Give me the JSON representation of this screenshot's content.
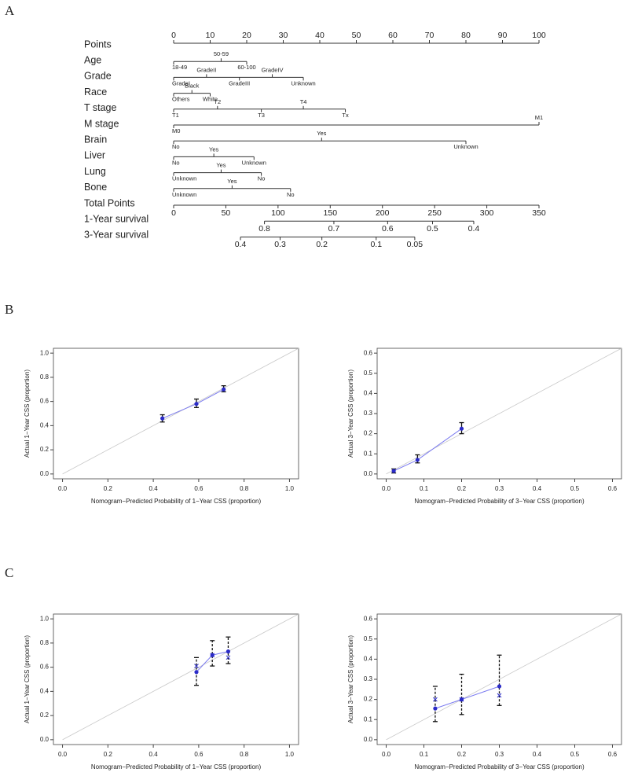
{
  "panel_labels": [
    "A",
    "B",
    "C"
  ],
  "chart_data": [
    {
      "type": "nomogram",
      "points_axis": {
        "name": "Points",
        "lim": [
          0,
          100
        ],
        "ticks": [
          0,
          10,
          20,
          30,
          40,
          50,
          60,
          70,
          80,
          90,
          100
        ]
      },
      "variables": [
        {
          "name": "Age",
          "levels": [
            "18-49",
            "50-59",
            "60-100"
          ],
          "points": [
            0,
            13,
            20
          ]
        },
        {
          "name": "Grade",
          "levels": [
            "GradeI",
            "GradeII",
            "GradeIII",
            "GradeIV",
            "Unknown"
          ],
          "points": [
            0,
            9,
            18,
            27,
            35.5
          ]
        },
        {
          "name": "Race",
          "levels": [
            "Others",
            "Black",
            "White"
          ],
          "points": [
            0,
            5,
            10
          ]
        },
        {
          "name": "T stage",
          "levels": [
            "T1",
            "T2",
            "T3",
            "T4",
            "Tx"
          ],
          "points": [
            0,
            12,
            24,
            35.5,
            47
          ]
        },
        {
          "name": "M stage",
          "levels": [
            "M0",
            "M1"
          ],
          "points": [
            0,
            100
          ]
        },
        {
          "name": "Brain",
          "levels": [
            "No",
            "Yes",
            "Unknown"
          ],
          "points": [
            0,
            40.5,
            80
          ]
        },
        {
          "name": "Liver",
          "levels": [
            "No",
            "Yes",
            "Unknown"
          ],
          "points": [
            0,
            11,
            22
          ]
        },
        {
          "name": "Lung",
          "levels": [
            "Unknown",
            "Yes",
            "No"
          ],
          "points": [
            0,
            13,
            24
          ]
        },
        {
          "name": "Bone",
          "levels": [
            "Unknown",
            "Yes",
            "No"
          ],
          "points": [
            0,
            16,
            32
          ]
        }
      ],
      "total_points": {
        "name": "Total Points",
        "lim": [
          0,
          350
        ],
        "ticks": [
          0,
          50,
          100,
          150,
          200,
          250,
          300,
          350
        ]
      },
      "survival": [
        {
          "name": "1-Year survival",
          "probabilities": [
            0.8,
            0.7,
            0.6,
            0.5,
            0.4
          ],
          "total_points": [
            87,
            153.5,
            205,
            248,
            287.5
          ]
        },
        {
          "name": "3-Year survival",
          "probabilities": [
            0.4,
            0.3,
            0.2,
            0.1,
            0.05
          ],
          "total_points": [
            64,
            102,
            142,
            194,
            231
          ]
        }
      ]
    },
    {
      "type": "calibration",
      "xlabel": "Nomogram−Predicted Probability of 1−Year CSS (proportion)",
      "ylabel": "Actual 1−Year CSS (proportion)",
      "xlim": [
        -0.04,
        1.04
      ],
      "ylim": [
        -0.04,
        1.04
      ],
      "xticks": [
        {
          "value": 0,
          "label": "0.0"
        },
        0.2,
        0.4,
        0.6,
        0.8,
        {
          "value": 1,
          "label": "1.0"
        }
      ],
      "yticks": [
        {
          "value": 0,
          "label": "0.0"
        },
        0.2,
        0.4,
        0.6,
        0.8,
        {
          "value": 1,
          "label": "1.0"
        }
      ],
      "x": [
        0.44,
        0.59,
        0.71
      ],
      "values": [
        0.46,
        0.58,
        0.7
      ],
      "lower": [
        0.43,
        0.55,
        0.68
      ],
      "upper": [
        0.49,
        0.62,
        0.73
      ],
      "color": "#2b2bc8",
      "line_color": "#7c7cf0",
      "errorbar_style": "solid"
    },
    {
      "type": "calibration",
      "xlabel": "Nomogram−Predicted Probability of 3−Year CSS  (proportion)",
      "ylabel": "Actual 3−Year CSS (proportion)",
      "xlim": [
        -0.024,
        0.624
      ],
      "ylim": [
        -0.024,
        0.624
      ],
      "xticks": [
        {
          "value": 0,
          "label": "0.0"
        },
        0.1,
        0.2,
        0.3,
        0.4,
        0.5,
        0.6
      ],
      "yticks": [
        {
          "value": 0,
          "label": "0.0"
        },
        0.1,
        0.2,
        0.3,
        0.4,
        0.5,
        0.6
      ],
      "x": [
        0.02,
        0.083,
        0.2
      ],
      "values": [
        0.015,
        0.07,
        0.225
      ],
      "lower": [
        0.005,
        0.055,
        0.2
      ],
      "upper": [
        0.025,
        0.095,
        0.255
      ],
      "color": "#2b2bc8",
      "line_color": "#7c7cf0",
      "errorbar_style": "solid"
    },
    {
      "type": "calibration",
      "xlabel": "Nomogram−Predicted Probability of 1−Year CSS (proportion)",
      "ylabel": "Actual 1−Year CSS (proportion)",
      "xlim": [
        -0.04,
        1.04
      ],
      "ylim": [
        -0.04,
        1.04
      ],
      "xticks": [
        {
          "value": 0,
          "label": "0.0"
        },
        0.2,
        0.4,
        0.6,
        0.8,
        {
          "value": 1,
          "label": "1.0"
        }
      ],
      "yticks": [
        {
          "value": 0,
          "label": "0.0"
        },
        0.2,
        0.4,
        0.6,
        0.8,
        {
          "value": 1,
          "label": "1.0"
        }
      ],
      "x": [
        0.59,
        0.66,
        0.73
      ],
      "values": [
        0.56,
        0.7,
        0.73
      ],
      "lower": [
        0.45,
        0.61,
        0.63
      ],
      "upper": [
        0.68,
        0.82,
        0.85
      ],
      "bias_corrected": [
        0.61,
        0.7,
        0.68
      ],
      "color": "#2b2bc8",
      "line_color": "#7c7cf0",
      "errorbar_style": "dashed"
    },
    {
      "type": "calibration",
      "xlabel": "Nomogram−Predicted Probability of 3−Year CSS (proportion)",
      "ylabel": "Actual 3−Year CSS (proportion)",
      "xlim": [
        -0.024,
        0.624
      ],
      "ylim": [
        -0.024,
        0.624
      ],
      "xticks": [
        {
          "value": 0,
          "label": "0.0"
        },
        0.1,
        0.2,
        0.3,
        0.4,
        0.5,
        0.6
      ],
      "yticks": [
        {
          "value": 0,
          "label": "0.0"
        },
        0.1,
        0.2,
        0.3,
        0.4,
        0.5,
        0.6
      ],
      "x": [
        0.13,
        0.2,
        0.3
      ],
      "values": [
        0.155,
        0.2,
        0.265
      ],
      "lower": [
        0.09,
        0.125,
        0.17
      ],
      "upper": [
        0.265,
        0.325,
        0.42
      ],
      "bias_corrected": [
        0.2,
        0.2,
        0.22
      ],
      "color": "#2b2bc8",
      "line_color": "#7c7cf0",
      "errorbar_style": "dashed"
    }
  ]
}
